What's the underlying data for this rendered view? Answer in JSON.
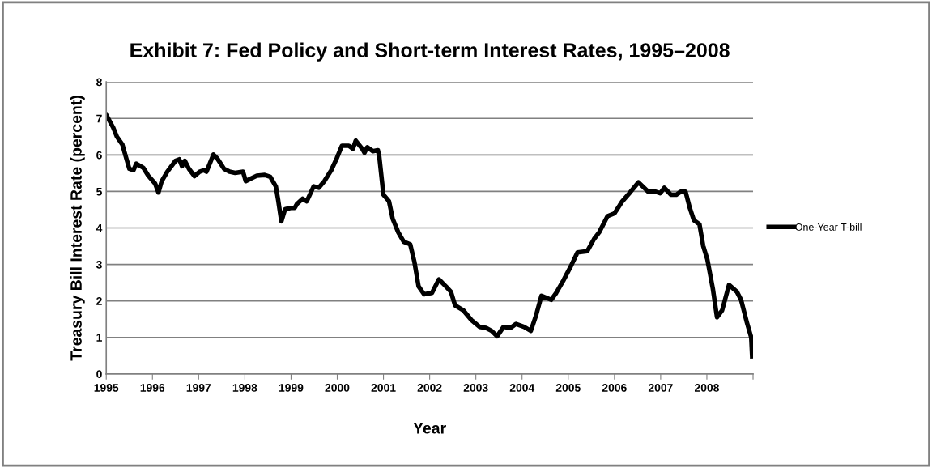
{
  "chart_data": {
    "type": "line",
    "title": "Exhibit 7: Fed Policy and Short-term Interest Rates, 1995–2008",
    "xlabel": "Year",
    "ylabel": "Treasury Bill Interest Rate (percent)",
    "series": [
      {
        "name": "One-Year T-bill",
        "color": "#000000",
        "x": [
          1995.0,
          1995.15,
          1995.23,
          1995.35,
          1995.44,
          1995.5,
          1995.59,
          1995.65,
          1995.8,
          1995.91,
          1996.06,
          1996.13,
          1996.2,
          1996.32,
          1996.5,
          1996.58,
          1996.64,
          1996.7,
          1996.79,
          1996.91,
          1997.02,
          1997.11,
          1997.17,
          1997.32,
          1997.4,
          1997.55,
          1997.67,
          1997.79,
          1997.96,
          1998.02,
          1998.14,
          1998.26,
          1998.43,
          1998.55,
          1998.67,
          1998.72,
          1998.79,
          1998.87,
          1998.99,
          1999.08,
          1999.13,
          1999.25,
          1999.34,
          1999.49,
          1999.6,
          1999.72,
          1999.87,
          1999.99,
          2000.1,
          2000.25,
          2000.34,
          2000.4,
          2000.54,
          2000.59,
          2000.65,
          2000.77,
          2000.88,
          2000.91,
          2001.0,
          2001.12,
          2001.2,
          2001.32,
          2001.44,
          2001.58,
          2001.67,
          2001.76,
          2001.88,
          2002.05,
          2002.2,
          2002.35,
          2002.46,
          2002.55,
          2002.73,
          2002.9,
          2003.08,
          2003.22,
          2003.34,
          2003.46,
          2003.6,
          2003.75,
          2003.87,
          2004.04,
          2004.19,
          2004.3,
          2004.42,
          2004.63,
          2004.74,
          2004.89,
          2005.06,
          2005.2,
          2005.41,
          2005.56,
          2005.67,
          2005.85,
          2006.0,
          2006.17,
          2006.35,
          2006.52,
          2006.73,
          2006.87,
          2006.99,
          2007.08,
          2007.22,
          2007.34,
          2007.43,
          2007.54,
          2007.63,
          2007.72,
          2007.84,
          2007.92,
          2008.01,
          2008.13,
          2008.22,
          2008.33,
          2008.48,
          2008.65,
          2008.74,
          2008.86,
          2008.96,
          2008.98
        ],
        "values": [
          7.1,
          6.75,
          6.5,
          6.28,
          5.88,
          5.62,
          5.58,
          5.76,
          5.65,
          5.43,
          5.21,
          4.97,
          5.28,
          5.54,
          5.84,
          5.88,
          5.69,
          5.84,
          5.62,
          5.42,
          5.54,
          5.58,
          5.54,
          6.01,
          5.91,
          5.62,
          5.54,
          5.51,
          5.54,
          5.28,
          5.36,
          5.43,
          5.45,
          5.4,
          5.14,
          4.77,
          4.18,
          4.51,
          4.55,
          4.55,
          4.66,
          4.8,
          4.73,
          5.14,
          5.1,
          5.28,
          5.58,
          5.91,
          6.25,
          6.25,
          6.17,
          6.39,
          6.17,
          6.06,
          6.21,
          6.1,
          6.13,
          5.95,
          4.91,
          4.73,
          4.25,
          3.88,
          3.62,
          3.55,
          3.07,
          2.4,
          2.18,
          2.22,
          2.59,
          2.4,
          2.25,
          1.88,
          1.74,
          1.48,
          1.29,
          1.26,
          1.18,
          1.03,
          1.29,
          1.26,
          1.37,
          1.29,
          1.18,
          1.59,
          2.14,
          2.03,
          2.22,
          2.55,
          2.96,
          3.33,
          3.36,
          3.7,
          3.88,
          4.32,
          4.4,
          4.73,
          4.99,
          5.25,
          4.99,
          5.0,
          4.95,
          5.1,
          4.91,
          4.91,
          4.99,
          4.99,
          4.55,
          4.21,
          4.1,
          3.51,
          3.14,
          2.33,
          1.55,
          1.74,
          2.44,
          2.25,
          2.03,
          1.44,
          1.0,
          0.48
        ]
      }
    ],
    "xlim": [
      1995,
      2009
    ],
    "xticks": [
      1995,
      1996,
      1997,
      1998,
      1999,
      2000,
      2001,
      2002,
      2003,
      2004,
      2005,
      2006,
      2007,
      2008,
      {
        "value": 2009,
        "label": null
      }
    ],
    "ylim": [
      0,
      8
    ],
    "yticks": [
      0,
      1,
      2,
      3,
      4,
      5,
      6,
      7,
      8
    ],
    "grid": "y",
    "legend": "right",
    "marker": "none",
    "line_style": "solid"
  }
}
